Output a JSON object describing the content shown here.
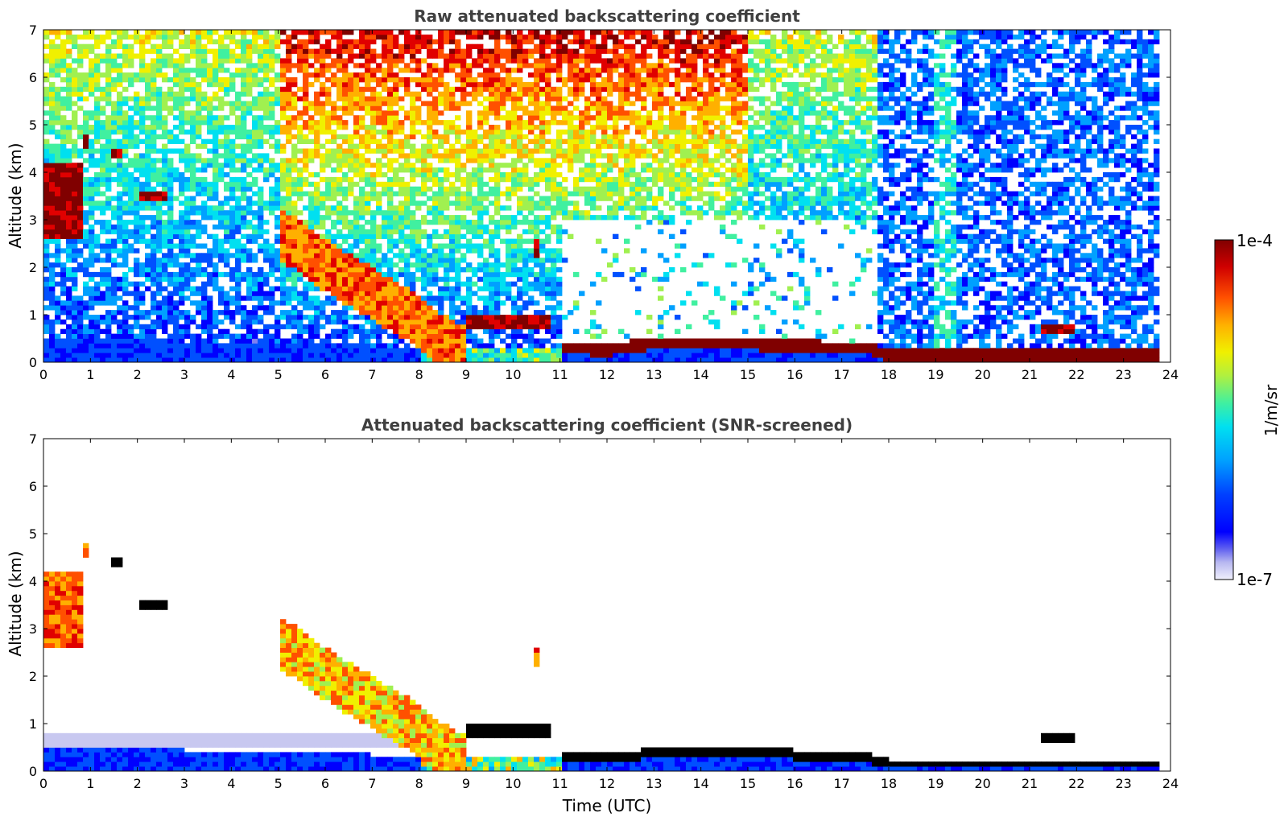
{
  "chart_data": [
    {
      "type": "heatmap",
      "title": "Raw attenuated backscattering coefficient",
      "xlabel": "",
      "ylabel": "Altitude (km)",
      "xlim": [
        0,
        24
      ],
      "ylim": [
        0,
        7
      ],
      "xticks": [
        "0",
        "1",
        "2",
        "3",
        "4",
        "5",
        "6",
        "7",
        "8",
        "9",
        "10",
        "11",
        "12",
        "13",
        "14",
        "15",
        "16",
        "17",
        "18",
        "19",
        "20",
        "21",
        "22",
        "23",
        "24"
      ],
      "yticks": [
        "0",
        "1",
        "2",
        "3",
        "4",
        "5",
        "6",
        "7"
      ],
      "features": {
        "boundary_layer_top_km": [
          [
            0,
            0.45
          ],
          [
            3,
            0.45
          ],
          [
            6,
            0.4
          ],
          [
            8,
            0.3
          ],
          [
            11,
            0.3
          ],
          [
            12,
            0.25
          ],
          [
            13,
            0.4
          ],
          [
            14,
            0.4
          ],
          [
            16,
            0.35
          ],
          [
            17.5,
            0.3
          ],
          [
            18,
            0.15
          ],
          [
            24,
            0.15
          ]
        ],
        "descending_aerosol_layer": [
          [
            5,
            2.8
          ],
          [
            6,
            2.1
          ],
          [
            7,
            1.5
          ],
          [
            8,
            0.9
          ],
          [
            8.5,
            0.5
          ],
          [
            9,
            0.25
          ]
        ],
        "cloud_layers": [
          {
            "t_start": 0,
            "t_end": 0.8,
            "base_km": 2.6,
            "top_km": 4.2
          },
          {
            "t_start": 0.8,
            "t_end": 0.9,
            "base_km": 4.5,
            "top_km": 4.8
          },
          {
            "t_start": 1.5,
            "t_end": 1.7,
            "base_km": 4.3,
            "top_km": 4.5
          },
          {
            "t_start": 2.0,
            "t_end": 2.6,
            "base_km": 3.4,
            "top_km": 3.6
          },
          {
            "t_start": 9.0,
            "t_end": 10.8,
            "base_km": 0.7,
            "top_km": 1.0
          },
          {
            "t_start": 10.5,
            "t_end": 10.6,
            "base_km": 2.2,
            "top_km": 2.6
          },
          {
            "t_start": 21.2,
            "t_end": 21.9,
            "base_km": 0.65,
            "top_km": 0.8
          }
        ]
      }
    },
    {
      "type": "heatmap",
      "title": "Attenuated backscattering coefficient (SNR-screened)",
      "xlabel": "Time (UTC)",
      "ylabel": "Altitude (km)",
      "xlim": [
        0,
        24
      ],
      "ylim": [
        0,
        7
      ],
      "xticks": [
        "0",
        "1",
        "2",
        "3",
        "4",
        "5",
        "6",
        "7",
        "8",
        "9",
        "10",
        "11",
        "12",
        "13",
        "14",
        "15",
        "16",
        "17",
        "18",
        "19",
        "20",
        "21",
        "22",
        "23",
        "24"
      ],
      "yticks": [
        "0",
        "1",
        "2",
        "3",
        "4",
        "5",
        "6",
        "7"
      ]
    }
  ],
  "colorbar": {
    "label": "1/m/sr",
    "max_label": "1e-4",
    "min_label": "1e-7",
    "colormap": [
      "#e8e8f8",
      "#c8c8f0",
      "#8080f0",
      "#0000ff",
      "#0050ff",
      "#00a0ff",
      "#00e0f0",
      "#40f0a0",
      "#a0f050",
      "#f0f000",
      "#ffb000",
      "#ff5000",
      "#e00000",
      "#800000"
    ]
  }
}
